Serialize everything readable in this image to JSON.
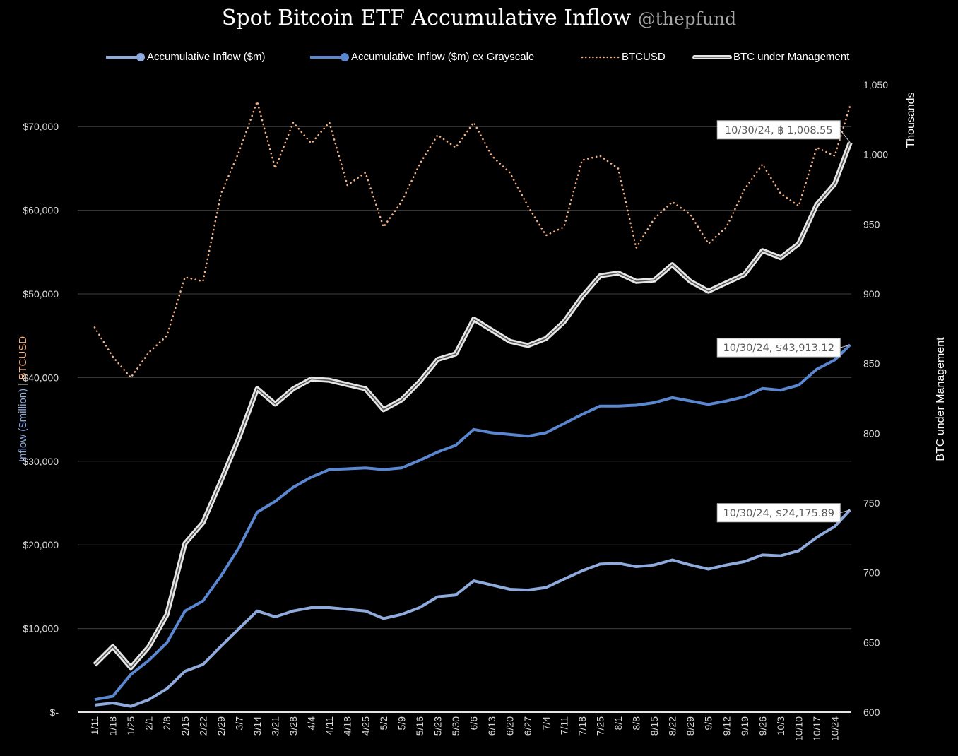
{
  "chart_data": {
    "type": "line",
    "title": "Spot Bitcoin ETF Accumulative Inflow",
    "title_handle": "@thepfund",
    "x": [
      "1/11",
      "1/18",
      "1/25",
      "2/1",
      "2/8",
      "2/15",
      "2/22",
      "2/29",
      "3/7",
      "3/14",
      "3/21",
      "3/28",
      "4/4",
      "4/11",
      "4/18",
      "4/25",
      "5/2",
      "5/9",
      "5/16",
      "5/23",
      "5/30",
      "6/6",
      "6/13",
      "6/20",
      "6/27",
      "7/4",
      "7/11",
      "7/18",
      "7/25",
      "8/1",
      "8/8",
      "8/15",
      "8/22",
      "8/29",
      "9/5",
      "9/12",
      "9/19",
      "9/26",
      "10/3",
      "10/10",
      "10/17",
      "10/24",
      "10/30"
    ],
    "x_tick_labels": [
      "1/11",
      "1/18",
      "1/25",
      "2/1",
      "2/8",
      "2/15",
      "2/22",
      "2/29",
      "3/7",
      "3/14",
      "3/21",
      "3/28",
      "4/4",
      "4/11",
      "4/18",
      "4/25",
      "5/2",
      "5/9",
      "5/16",
      "5/23",
      "5/30",
      "6/6",
      "6/13",
      "6/20",
      "6/27",
      "7/4",
      "7/11",
      "7/18",
      "7/25",
      "8/1",
      "8/8",
      "8/15",
      "8/22",
      "8/29",
      "9/5",
      "9/12",
      "9/19",
      "9/26",
      "10/3",
      "10/10",
      "10/17",
      "10/24"
    ],
    "y_left": {
      "label_parts": [
        "Inflow ($million)",
        " | ",
        "BTCUSD"
      ],
      "range": [
        0,
        75000
      ],
      "ticks": [
        0,
        10000,
        20000,
        30000,
        40000,
        50000,
        60000,
        70000
      ],
      "tick_labels": [
        "$-",
        "$10,000",
        "$20,000",
        "$30,000",
        "$40,000",
        "$50,000",
        "$60,000",
        "$70,000"
      ]
    },
    "y_right": {
      "label": "BTC under Management",
      "unit_label": "Thousands",
      "range": [
        600,
        1050
      ],
      "ticks": [
        600,
        650,
        700,
        750,
        800,
        850,
        900,
        950,
        1000,
        1050
      ],
      "tick_labels": [
        "600",
        "650",
        "700",
        "750",
        "800",
        "850",
        "900",
        "950",
        "1,000",
        "1,050"
      ]
    },
    "grid": true,
    "legend_position": "top",
    "series": [
      {
        "name": "Accumulative Inflow ($m)",
        "axis": "left",
        "color": "#8faadc",
        "style": "solid",
        "values": [
          850,
          1100,
          700,
          1500,
          2800,
          4900,
          5700,
          7900,
          10000,
          12100,
          11400,
          12100,
          12500,
          12500,
          12300,
          12100,
          11200,
          11700,
          12500,
          13800,
          14000,
          15700,
          15200,
          14700,
          14600,
          14900,
          15900,
          16900,
          17700,
          17800,
          17400,
          17600,
          18200,
          17600,
          17100,
          17600,
          18000,
          18800,
          18700,
          19300,
          20900,
          22200,
          24175.89
        ]
      },
      {
        "name": "Accumulative Inflow ($m) ex Grayscale",
        "axis": "left",
        "color": "#5b87d0",
        "style": "solid",
        "values": [
          1500,
          1900,
          4500,
          6200,
          8300,
          12100,
          13300,
          16300,
          19700,
          23900,
          25200,
          26900,
          28100,
          29000,
          29100,
          29200,
          29000,
          29200,
          30100,
          31100,
          31900,
          33800,
          33400,
          33200,
          33000,
          33400,
          34500,
          35600,
          36600,
          36600,
          36700,
          37000,
          37600,
          37200,
          36800,
          37200,
          37700,
          38700,
          38500,
          39100,
          41000,
          42100,
          43913.12
        ]
      },
      {
        "name": "BTCUSD",
        "axis": "left",
        "color": "#f4b183",
        "style": "dotted",
        "values": [
          46000,
          42500,
          40000,
          43000,
          45000,
          52000,
          51500,
          62000,
          67000,
          73000,
          65000,
          70500,
          68000,
          70500,
          63000,
          64500,
          58000,
          61000,
          65500,
          69000,
          67500,
          70500,
          66500,
          64500,
          60500,
          57000,
          58000,
          66000,
          66500,
          65000,
          55500,
          59000,
          61000,
          59500,
          56000,
          58000,
          62500,
          65500,
          62000,
          60500,
          67500,
          66500,
          72500
        ]
      },
      {
        "name": "BTC under Management",
        "axis": "right",
        "color": "#e6e6e6",
        "style": "double",
        "values": [
          634,
          647,
          632,
          647,
          670,
          721,
          736,
          766,
          797,
          832,
          821,
          832,
          839,
          838,
          835,
          832,
          817,
          824,
          837,
          853,
          857,
          882,
          874,
          866,
          863,
          868,
          880,
          898,
          913,
          915,
          909,
          910,
          921,
          909,
          902,
          908,
          914,
          931,
          926,
          936,
          964,
          979,
          1008.55
        ]
      }
    ],
    "annotations": [
      {
        "series": "BTC under Management",
        "text": "10/30/24,  ฿ 1,008.55"
      },
      {
        "series": "Accumulative Inflow ($m) ex Grayscale",
        "text": "10/30/24,  $43,913.12"
      },
      {
        "series": "Accumulative Inflow ($m)",
        "text": "10/30/24,  $24,175.89"
      }
    ]
  }
}
